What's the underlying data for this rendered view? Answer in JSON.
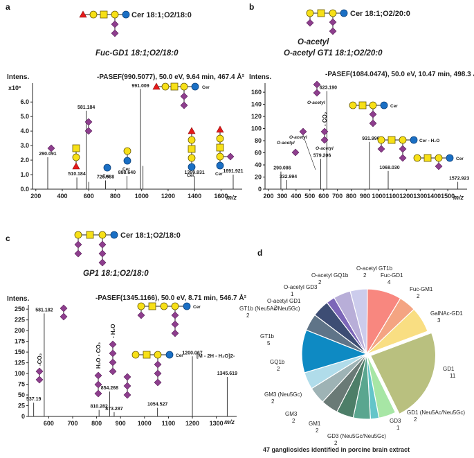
{
  "panel_labels": [
    "a",
    "b",
    "c",
    "d"
  ],
  "glycan_legend": {
    "hexose": "#f7e017",
    "hexnac": "#f7e017",
    "sialic": "#8e3e8e",
    "fucose": "#e51a1a",
    "cer": "#1a6fc4"
  },
  "chart_data": [
    {
      "type": "bar",
      "title": "Fuc-GD1 18:1;O2/18:0",
      "header_cer": "Cer 18:1;O2/18:0",
      "meta": "-PASEF(990.5077), 50.0 eV, 9.64 min, 467.4 Å²",
      "ylabel": "Intens.",
      "yunit": "x10³",
      "xlabel": "m/z",
      "xlim": [
        175,
        1760
      ],
      "ylim": [
        0,
        7.3
      ],
      "xticks": [
        200,
        400,
        600,
        800,
        1000,
        1200,
        1400,
        1600
      ],
      "yticks": [
        "0.0",
        "1.0",
        "2.0",
        "3.0",
        "4.0",
        "5.0",
        "6.0"
      ],
      "peaks": [
        {
          "x": 290.091,
          "y": 2.2,
          "label": "290.091"
        },
        {
          "x": 510.184,
          "y": 0.8,
          "label": "510.184"
        },
        {
          "x": 581.184,
          "y": 5.4,
          "label": "581.184"
        },
        {
          "x": 600,
          "y": 0.5,
          "label": ""
        },
        {
          "x": 726.588,
          "y": 0.6,
          "label": "726.588"
        },
        {
          "x": 888.64,
          "y": 0.9,
          "label": "888.640"
        },
        {
          "x": 991.009,
          "y": 6.9,
          "label": "991.009"
        },
        {
          "x": 1010,
          "y": 1.6,
          "label": ""
        },
        {
          "x": 1399.831,
          "y": 0.9,
          "label": "1399.831"
        },
        {
          "x": 1691.921,
          "y": 1.0,
          "label": "1691.921"
        }
      ],
      "fragment_texts": [
        "Cer",
        "Cer",
        "Cer",
        "Cer",
        "Cer"
      ]
    },
    {
      "type": "bar",
      "title": "O-acetyl GT1 18:1;O2/20:0",
      "header_cer": "Cer 18:1;O2/20:0",
      "header_mod": "O-acetyl",
      "meta": "-PASEF(1084.0474), 50.0 eV, 10.47 min, 498.3 Å²",
      "ylabel": "Intens.",
      "xlabel": "m/z",
      "xlim": [
        175,
        1640
      ],
      "ylim": [
        0,
        175
      ],
      "xticks": [
        200,
        300,
        400,
        500,
        600,
        700,
        800,
        900,
        1000,
        1100,
        1200,
        1300,
        1400,
        1500
      ],
      "yticks": [
        "0",
        "20",
        "40",
        "60",
        "80",
        "100",
        "120",
        "140",
        "160"
      ],
      "peaks": [
        {
          "x": 290.086,
          "y": 29,
          "label": "290.086"
        },
        {
          "x": 332.994,
          "y": 15,
          "label": "332.994"
        },
        {
          "x": 579.206,
          "y": 50,
          "label": "579.206"
        },
        {
          "x": 623.19,
          "y": 162,
          "label": "623.190"
        },
        {
          "x": 931.996,
          "y": 78,
          "label": "931.996"
        },
        {
          "x": 1068.03,
          "y": 30,
          "label": "1068.030"
        },
        {
          "x": 1572.923,
          "y": 12,
          "label": "1572.923"
        }
      ],
      "fragment_texts": [
        "O-acetyl",
        "O-acetyl",
        "O-acetyl",
        "O-acetyl",
        "- CO₂",
        "Cer",
        "Cer - H₂O",
        "Cer"
      ]
    },
    {
      "type": "bar",
      "title": "GP1 18:1;O2/18:0",
      "header_cer": "Cer 18:1;O2/18:0",
      "meta": "-PASEF(1345.1166), 50.0 eV, 8.71 min, 546.7 Å²",
      "ylabel": "Intens.",
      "xlabel": "m/z",
      "xlim": [
        515,
        1385
      ],
      "ylim": [
        0,
        260
      ],
      "xticks": [
        600,
        700,
        800,
        900,
        1000,
        1100,
        1200,
        1300
      ],
      "yticks": [
        "0",
        "25",
        "50",
        "75",
        "100",
        "125",
        "150",
        "175",
        "200",
        "225",
        "250"
      ],
      "peaks": [
        {
          "x": 537.19,
          "y": 32,
          "label": "537.19"
        },
        {
          "x": 581.182,
          "y": 240,
          "label": "581.182"
        },
        {
          "x": 810.282,
          "y": 15,
          "label": "810.282"
        },
        {
          "x": 854.268,
          "y": 58,
          "label": "854.268"
        },
        {
          "x": 873.287,
          "y": 10,
          "label": "873.287"
        },
        {
          "x": 1054.527,
          "y": 20,
          "label": "1054.527"
        },
        {
          "x": 1200.067,
          "y": 140,
          "label": "1200.067"
        },
        {
          "x": 1345.619,
          "y": 92,
          "label": "1345.619"
        }
      ],
      "fragment_texts": [
        "-CO₂",
        "H₂O - CO₂",
        "- H₂O",
        "Cer",
        "Cer",
        "[M - 2H - H₂O]2-"
      ]
    },
    {
      "type": "pie",
      "caption": "47 gangliosides identified in porcine brain extract",
      "slices": [
        {
          "label": "Fuc-GD1",
          "value": 4,
          "color": "#f8877f"
        },
        {
          "label": "Fuc-GM1",
          "value": 2,
          "color": "#f4a482"
        },
        {
          "label": "GalNAc-GD1",
          "value": 3,
          "color": "#f9de82"
        },
        {
          "label": "GD1",
          "value": 11,
          "color": "#b9c07f"
        },
        {
          "label": "GD1 (Neu5Ac/Neu5Gc)",
          "value": 2,
          "color": "#a7e6a5"
        },
        {
          "label": "GD3",
          "value": 1,
          "color": "#64c5c9"
        },
        {
          "label": "GD3 (Neu5Gc/Neu5Gc)",
          "value": 2,
          "color": "#5aa68f"
        },
        {
          "label": "GM1",
          "value": 2,
          "color": "#4d7e68"
        },
        {
          "label": "GM3",
          "value": 2,
          "color": "#6a7a76"
        },
        {
          "label": "GM3 (Neu5Gc)",
          "value": 2,
          "color": "#9eb3b5"
        },
        {
          "label": "GQ1b",
          "value": 2,
          "color": "#b0dcea"
        },
        {
          "label": "GT1b",
          "value": 5,
          "color": "#0e8ac3"
        },
        {
          "label": "GT1b (Neu5Ac/Neu5Gc)",
          "value": 2,
          "color": "#5f7488"
        },
        {
          "label": "O-acetyl GD1",
          "value": 2,
          "color": "#3d4d74"
        },
        {
          "label": "O-acetyl GD3",
          "value": 1,
          "color": "#7c66b8"
        },
        {
          "label": "O-acetyl GQ1b",
          "value": 2,
          "color": "#b8aed8"
        },
        {
          "label": "O-acetyl GT1b",
          "value": 2,
          "color": "#ccccec"
        }
      ]
    }
  ]
}
